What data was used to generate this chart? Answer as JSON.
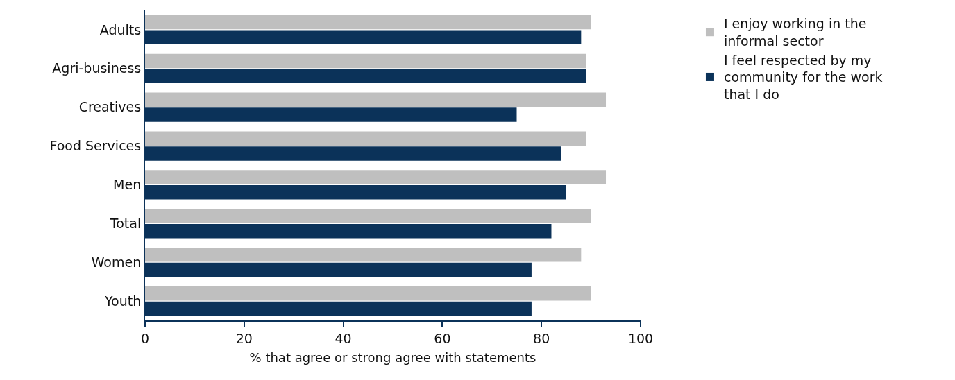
{
  "chart_data": {
    "type": "bar",
    "orientation": "horizontal",
    "xlabel": "% that agree or strong agree with statements",
    "categories": [
      "Adults",
      "Agri-business",
      "Creatives",
      "Food Services",
      "Men",
      "Total",
      "Women",
      "Youth"
    ],
    "series": [
      {
        "name": "I enjoy working in the informal sector",
        "color": "#bfbfbf",
        "values": [
          90,
          89,
          93,
          89,
          93,
          90,
          88,
          90
        ]
      },
      {
        "name": "I feel respected by my community for the work that I do",
        "color": "#0b3259",
        "values": [
          88,
          89,
          75,
          84,
          85,
          82,
          78,
          78
        ]
      }
    ],
    "xlim": [
      0,
      100
    ],
    "xticks": [
      0,
      20,
      40,
      60,
      80,
      100
    ],
    "legend": "right"
  }
}
